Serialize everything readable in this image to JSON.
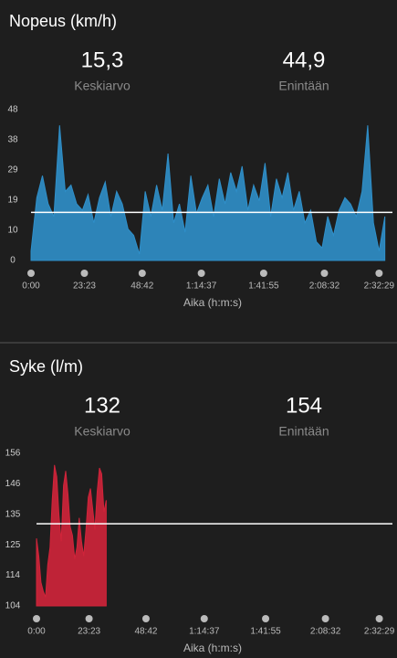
{
  "chart_data": [
    {
      "type": "area",
      "title": "Nopeus (km/h)",
      "stats": [
        {
          "value": {
            "value": 15.3,
            "label": "15,3"
          },
          "label": "Keskiarvo"
        },
        {
          "value": {
            "value": 44.9,
            "label": "44,9"
          },
          "label": "Enintään"
        }
      ],
      "x": [
        0,
        150,
        300,
        450,
        600,
        750,
        900,
        1050,
        1200,
        1350,
        1500,
        1650,
        1800,
        1950,
        2100,
        2250,
        2400,
        2550,
        2700,
        2850,
        3000,
        3150,
        3300,
        3450,
        3600,
        3750,
        3900,
        4050,
        4200,
        4350,
        4500,
        4650,
        4800,
        4950,
        5100,
        5250,
        5400,
        5550,
        5700,
        5850,
        6000,
        6150,
        6300,
        6450,
        6600,
        6750,
        6900,
        7050,
        7200,
        7350,
        7500,
        7650,
        7800,
        7950,
        8100,
        8250,
        8400,
        8550,
        8700,
        8850,
        9000,
        9150,
        9300
      ],
      "values": [
        3,
        20,
        27,
        18,
        14,
        43,
        22,
        24,
        18,
        16,
        21,
        12,
        20,
        25,
        14,
        22,
        18,
        10,
        8,
        2,
        22,
        14,
        24,
        16,
        34,
        12,
        18,
        9,
        27,
        15,
        20,
        24,
        14,
        26,
        18,
        28,
        22,
        30,
        16,
        24,
        19,
        31,
        14,
        26,
        20,
        28,
        16,
        22,
        12,
        16,
        6,
        4,
        14,
        8,
        16,
        20,
        18,
        14,
        22,
        43,
        12,
        3,
        14
      ],
      "color": "#2f8fc9",
      "xlim": [
        0,
        9500
      ],
      "xticks": [
        {
          "value": 0,
          "label": "0:00"
        },
        {
          "value": 1403,
          "label": "23:23"
        },
        {
          "value": 2922,
          "label": "48:42"
        },
        {
          "value": 4477,
          "label": "1:14:37"
        },
        {
          "value": 6115,
          "label": "1:41:55"
        },
        {
          "value": 7712,
          "label": "2:08:32"
        },
        {
          "value": 9149,
          "label": "2:32:29"
        }
      ],
      "ylim": [
        0,
        48
      ],
      "yticks": [
        0,
        {
          "value": 9.6,
          "label": "10"
        },
        {
          "value": 19.2,
          "label": "19"
        },
        {
          "value": 28.8,
          "label": "29"
        },
        {
          "value": 38.4,
          "label": "38"
        },
        48
      ],
      "xlabel": "Aika (h:m:s)"
    },
    {
      "type": "area",
      "title": "Syke (l/m)",
      "stats": [
        {
          "value": 132,
          "label": "Keskiarvo"
        },
        {
          "value": 154,
          "label": "Enintään"
        }
      ],
      "x": [
        0,
        60,
        120,
        180,
        240,
        300,
        360,
        420,
        480,
        540,
        600,
        660,
        720,
        780,
        840,
        900,
        960,
        1020,
        1080,
        1140,
        1200,
        1260,
        1320,
        1380,
        1440,
        1500,
        1560,
        1620,
        1680,
        1740,
        1800,
        1860
      ],
      "values": [
        127,
        121,
        112,
        109,
        107,
        118,
        124,
        140,
        152,
        148,
        135,
        126,
        145,
        150,
        142,
        131,
        128,
        120,
        124,
        134,
        126,
        121,
        130,
        141,
        144,
        137,
        130,
        143,
        151,
        149,
        136,
        140
      ],
      "color": "#d0243a",
      "xlim": [
        0,
        9500
      ],
      "xticks": [
        {
          "value": 0,
          "label": "0:00"
        },
        {
          "value": 1403,
          "label": "23:23"
        },
        {
          "value": 2922,
          "label": "48:42"
        },
        {
          "value": 4477,
          "label": "1:14:37"
        },
        {
          "value": 6115,
          "label": "1:41:55"
        },
        {
          "value": 7712,
          "label": "2:08:32"
        },
        {
          "value": 9149,
          "label": "2:32:29"
        }
      ],
      "ylim": [
        104,
        156
      ],
      "yticks": [
        104,
        {
          "value": 114.4,
          "label": "114"
        },
        {
          "value": 124.8,
          "label": "125"
        },
        {
          "value": 135.2,
          "label": "135"
        },
        {
          "value": 145.6,
          "label": "146"
        },
        156
      ],
      "xlabel": "Aika (h:m:s)"
    }
  ]
}
